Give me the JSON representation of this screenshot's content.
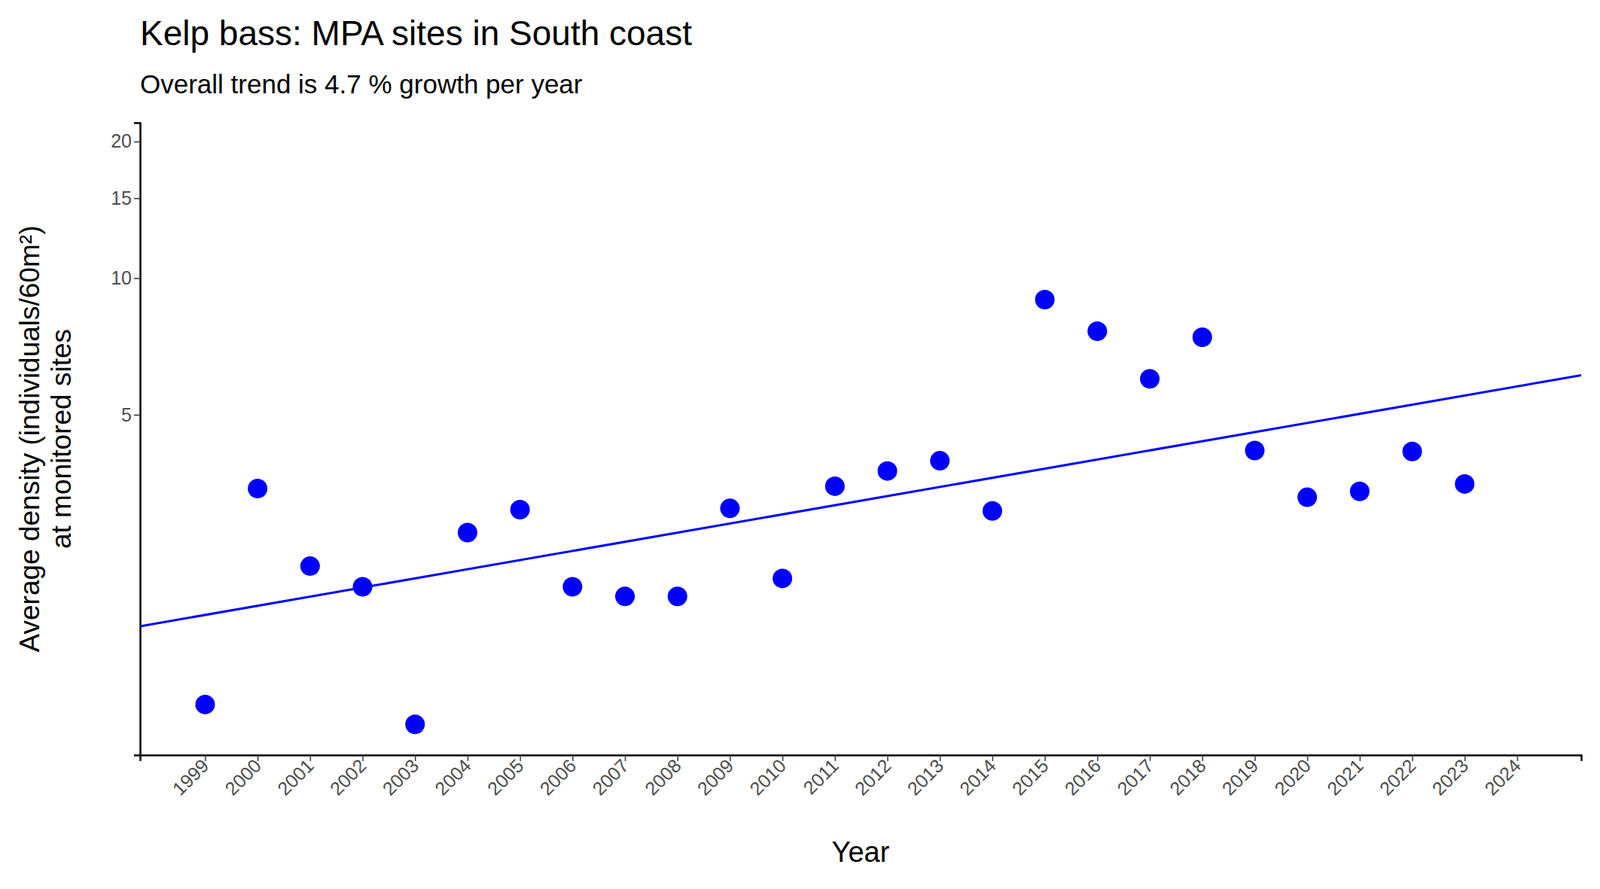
{
  "chart_data": {
    "type": "scatter",
    "title": "Kelp bass: MPA sites in South coast",
    "subtitle": "Overall trend is 4.7 % growth per year",
    "xlabel": "Year",
    "ylabel": [
      "Average density (individuals/60m²)",
      "at monitored sites"
    ],
    "log": "y",
    "grid": false,
    "x": [
      1999,
      2000,
      2001,
      2002,
      2003,
      2004,
      2005,
      2006,
      2007,
      2008,
      2009,
      2010,
      2011,
      2012,
      2013,
      2014,
      2015,
      2016,
      2017,
      2018,
      2019,
      2020,
      2021,
      2022,
      2023
    ],
    "series": [
      {
        "type": "scatter",
        "color": "#0000ff",
        "marker": "circle",
        "values": [
          1.15,
          3.44,
          2.32,
          2.09,
          1.04,
          2.75,
          3.09,
          2.09,
          1.99,
          1.99,
          3.11,
          2.18,
          3.48,
          3.76,
          3.96,
          3.07,
          8.97,
          7.64,
          6.0,
          7.41,
          4.17,
          3.29,
          3.39,
          4.15,
          3.52
        ]
      },
      {
        "type": "line",
        "color": "#0000ff",
        "line_style": "solid",
        "x": [
          1997.76,
          2025.22
        ],
        "values": [
          1.71,
          6.11
        ]
      }
    ],
    "xlim": [
      1997.76,
      2025.22
    ],
    "xticks": [
      1999,
      2000,
      2001,
      2002,
      2003,
      2004,
      2005,
      2006,
      2007,
      2008,
      2009,
      2010,
      2011,
      2012,
      2013,
      2014,
      2015,
      2016,
      2017,
      2018,
      2019,
      2020,
      2021,
      2022,
      2023,
      2024
    ],
    "ylim": [
      0.89,
      22
    ],
    "yticks": [
      5,
      10,
      15,
      20
    ]
  }
}
